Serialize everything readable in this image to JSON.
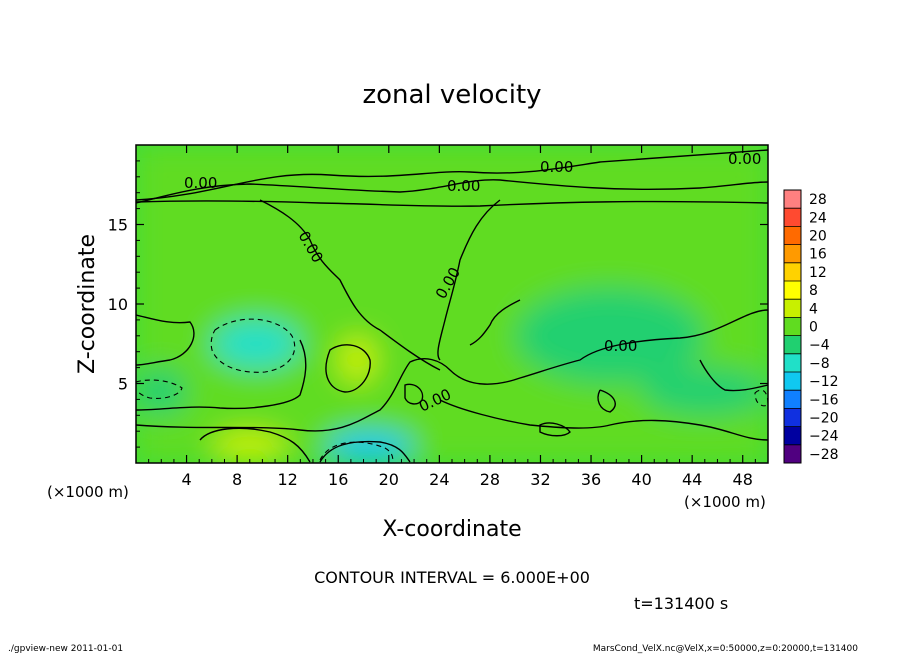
{
  "chart_data": {
    "type": "heatmap",
    "title": "zonal velocity",
    "xlabel": "X-coordinate",
    "ylabel": "Z-coordinate",
    "x_unit": "(×1000 m)",
    "y_unit": "(×1000 m)",
    "xlim": [
      0,
      50
    ],
    "ylim": [
      0,
      20
    ],
    "x_ticks": [
      4,
      8,
      12,
      16,
      20,
      24,
      28,
      32,
      36,
      40,
      44,
      48
    ],
    "y_ticks": [
      5,
      10,
      15
    ],
    "colorbar": {
      "levels": [
        28,
        24,
        20,
        16,
        12,
        8,
        4,
        0,
        -4,
        -8,
        -12,
        -16,
        -20,
        -24,
        -28
      ],
      "colors": [
        "#ff8080",
        "#ff4a30",
        "#ff6a00",
        "#ff9a00",
        "#ffd200",
        "#ffff00",
        "#c8f000",
        "#60dc20",
        "#20d070",
        "#20e0c8",
        "#10c8f0",
        "#1080ff",
        "#1030e0",
        "#0000a0",
        "#500080"
      ]
    },
    "contour_interval": "CONTOUR INTERVAL = 6.000E+00",
    "contour_labels": [
      "0.00",
      "0.00",
      "0.00",
      "0.00",
      "0.00",
      "0.00",
      "0.00",
      "0.00"
    ],
    "time_label": "t=131400 s",
    "regions": [
      {
        "x": [
          0,
          50
        ],
        "z": [
          0,
          20
        ],
        "value": 1
      },
      {
        "x": [
          6,
          13
        ],
        "z": [
          6,
          9
        ],
        "value": -5
      },
      {
        "x": [
          0,
          4
        ],
        "z": [
          3,
          6
        ],
        "value": -4
      },
      {
        "x": [
          15,
          22
        ],
        "z": [
          0,
          2
        ],
        "value": -9
      },
      {
        "x": [
          6,
          12
        ],
        "z": [
          0,
          2
        ],
        "value": 6
      },
      {
        "x": [
          16,
          19
        ],
        "z": [
          5,
          8
        ],
        "value": 5
      },
      {
        "x": [
          30,
          45
        ],
        "z": [
          5,
          11
        ],
        "value": -3
      },
      {
        "x": [
          40,
          50
        ],
        "z": [
          3,
          6
        ],
        "value": -3
      },
      {
        "x": [
          12,
          30
        ],
        "z": [
          9,
          17
        ],
        "value": 3
      }
    ]
  },
  "footer": {
    "left": "./gpview-new   2011-01-01",
    "right": "MarsCond_VelX.nc@VelX,x=0:50000,z=0:20000,t=131400"
  }
}
